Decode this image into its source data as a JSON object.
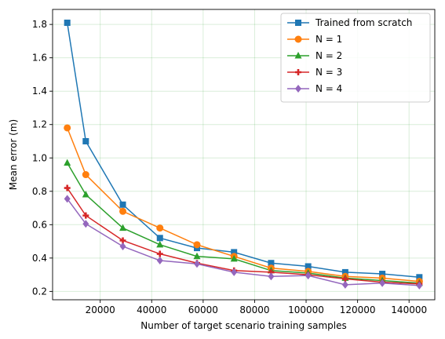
{
  "chart_data": {
    "type": "line",
    "title": "",
    "xlabel": "Number of target scenario training samples",
    "ylabel": "Mean error (m)",
    "xlim": [
      1500,
      150000
    ],
    "ylim": [
      0.15,
      1.89
    ],
    "xticks": [
      20000,
      40000,
      60000,
      80000,
      100000,
      120000,
      140000
    ],
    "yticks": [
      0.2,
      0.4,
      0.6,
      0.8,
      1.0,
      1.2,
      1.4,
      1.6,
      1.8
    ],
    "xtick_labels": [
      "20000",
      "40000",
      "60000",
      "80000",
      "100000",
      "120000",
      "140000"
    ],
    "ytick_labels": [
      "0.2",
      "0.4",
      "0.6",
      "0.8",
      "1.0",
      "1.2",
      "1.4",
      "1.6",
      "1.8"
    ],
    "grid": true,
    "legend_position": "top-right",
    "x": [
      7200,
      14400,
      28800,
      43200,
      57600,
      72000,
      86400,
      100800,
      115200,
      129600,
      144000
    ],
    "series": [
      {
        "name": "Trained from scratch",
        "color": "#1f77b4",
        "marker": "square",
        "values": [
          1.81,
          1.1,
          0.72,
          0.52,
          0.46,
          0.435,
          0.37,
          0.35,
          0.315,
          0.305,
          0.285
        ]
      },
      {
        "name": "N = 1",
        "color": "#ff7f0e",
        "marker": "circle",
        "values": [
          1.18,
          0.9,
          0.68,
          0.58,
          0.48,
          0.41,
          0.34,
          0.32,
          0.29,
          0.28,
          0.26
        ]
      },
      {
        "name": "N = 2",
        "color": "#2ca02c",
        "marker": "triangle",
        "values": [
          0.97,
          0.78,
          0.58,
          0.48,
          0.41,
          0.395,
          0.325,
          0.31,
          0.28,
          0.265,
          0.25
        ]
      },
      {
        "name": "N = 3",
        "color": "#d62728",
        "marker": "plus",
        "values": [
          0.82,
          0.655,
          0.505,
          0.425,
          0.37,
          0.325,
          0.315,
          0.3,
          0.275,
          0.255,
          0.245
        ]
      },
      {
        "name": "N = 4",
        "color": "#9467bd",
        "marker": "diamond",
        "values": [
          0.755,
          0.605,
          0.47,
          0.385,
          0.365,
          0.315,
          0.29,
          0.295,
          0.24,
          0.25,
          0.235
        ]
      }
    ]
  }
}
